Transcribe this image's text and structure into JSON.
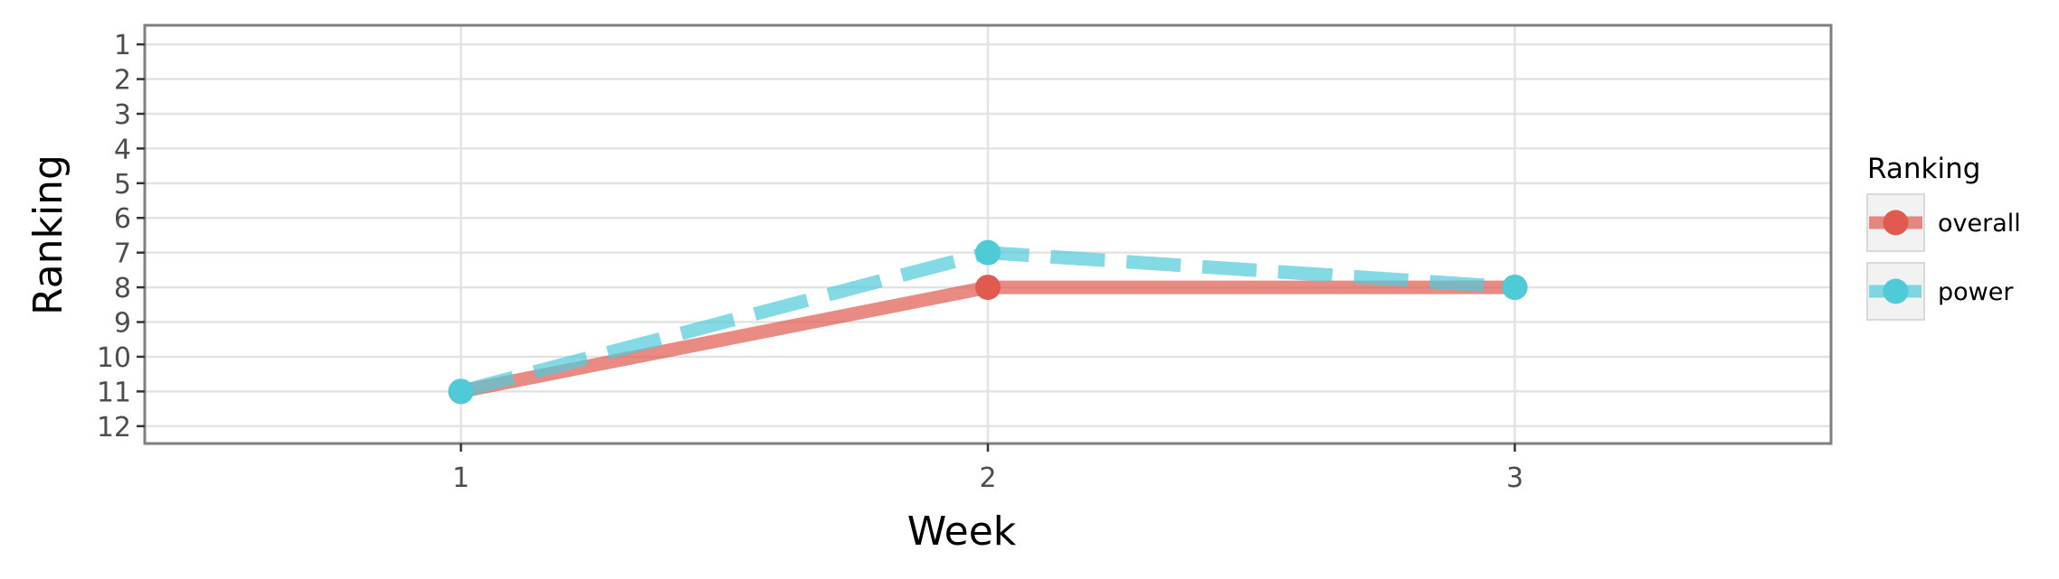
{
  "chart_data": {
    "type": "line",
    "x": [
      1,
      2,
      3
    ],
    "series": [
      {
        "name": "overall",
        "values": [
          11,
          8,
          8
        ],
        "color": "#E05A4F",
        "line_style": "solid"
      },
      {
        "name": "power",
        "values": [
          11,
          7,
          8
        ],
        "color": "#4FCBD8",
        "line_style": "dashed"
      }
    ],
    "xlabel": "Week",
    "ylabel": "Ranking",
    "xticks": [
      "1",
      "2",
      "3"
    ],
    "yticks": [
      "1",
      "2",
      "3",
      "4",
      "5",
      "6",
      "7",
      "8",
      "9",
      "10",
      "11",
      "12"
    ],
    "xlim": [
      0.4,
      3.6
    ],
    "ylim": [
      12.5,
      0.45
    ],
    "y_reversed": true,
    "grid": true,
    "legend": {
      "title": "Ranking",
      "placement": "right"
    }
  }
}
